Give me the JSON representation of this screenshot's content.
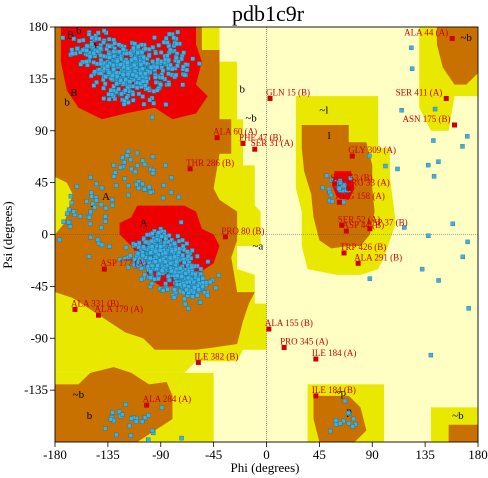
{
  "colors": {
    "core": "#ee0000",
    "allowed": "#c87000",
    "generous": "#e8e800",
    "outside": "#ffffc4",
    "point": "#40b0e0",
    "outlier": "#d00000"
  },
  "chart_data": {
    "type": "scatter",
    "title": "pdb1c9r",
    "xlabel": "Phi (degrees)",
    "ylabel": "Psi (degrees)",
    "xlim": [
      -180,
      180
    ],
    "ylim": [
      -180,
      180
    ],
    "xticks": [
      "-180",
      "-135",
      "-90",
      "-45",
      "0",
      "45",
      "90",
      "135",
      "180"
    ],
    "yticks": [
      "180",
      "135",
      "90",
      "45",
      "0",
      "-45",
      "-90",
      "-135"
    ],
    "grid": false,
    "region_labels": [
      {
        "text": "B",
        "x": -170,
        "y": 170
      },
      {
        "text": "b",
        "x": -162,
        "y": 174
      },
      {
        "text": "b",
        "x": -147,
        "y": 160
      },
      {
        "text": "B",
        "x": -167,
        "y": 120
      },
      {
        "text": "b",
        "x": -172,
        "y": 112
      },
      {
        "text": "A",
        "x": -140,
        "y": 30
      },
      {
        "text": "a",
        "x": -150,
        "y": 24
      },
      {
        "text": "A",
        "x": -108,
        "y": 7
      },
      {
        "text": "b",
        "x": -23,
        "y": 123
      },
      {
        "text": "~b",
        "x": -18,
        "y": 98
      },
      {
        "text": "~l",
        "x": 45,
        "y": 105
      },
      {
        "text": "l",
        "x": 52,
        "y": 83
      },
      {
        "text": "L",
        "x": 63,
        "y": 37
      },
      {
        "text": "~a",
        "x": -12,
        "y": -13
      },
      {
        "text": "~b",
        "x": -165,
        "y": -142
      },
      {
        "text": "b",
        "x": -153,
        "y": -160
      },
      {
        "text": "~p",
        "x": 58,
        "y": -140
      },
      {
        "text": "p",
        "x": 68,
        "y": -156
      },
      {
        "text": "~b",
        "x": 158,
        "y": -160
      },
      {
        "text": "~b",
        "x": 165,
        "y": 168
      }
    ],
    "outliers": [
      {
        "label": "ALA 44 (A)",
        "phi": 158,
        "psi": 170
      },
      {
        "label": "SER 411 (A)",
        "phi": 153,
        "psi": 118
      },
      {
        "label": "ASN 175 (B)",
        "phi": 160,
        "psi": 95
      },
      {
        "label": "GLN 15 (B)",
        "phi": 3,
        "psi": 118
      },
      {
        "label": "ALA 60 (A)",
        "phi": -42,
        "psi": 84
      },
      {
        "label": "PHE 47 (B)",
        "phi": -20,
        "psi": 79
      },
      {
        "label": "SER 31 (A)",
        "phi": -10,
        "psi": 74
      },
      {
        "label": "THR 286 (B)",
        "phi": -65,
        "psi": 57
      },
      {
        "label": "GLY 309 (A)",
        "phi": 73,
        "psi": 68
      },
      {
        "label": "SER 53 (B)",
        "phi": 58,
        "psi": 44
      },
      {
        "label": "ARG 33 (A)",
        "phi": 70,
        "psi": 40
      },
      {
        "label": "ARG 158 (A)",
        "phi": 62,
        "psi": 28
      },
      {
        "label": "SER 52 (A)",
        "phi": 64,
        "psi": 8
      },
      {
        "label": "ASP 44 (B)",
        "phi": 68,
        "psi": 3
      },
      {
        "label": "ASP 37 (B)",
        "phi": 88,
        "psi": 5
      },
      {
        "label": "PRO 80 (B)",
        "phi": -35,
        "psi": -2
      },
      {
        "label": "TRP 426 (B)",
        "phi": 66,
        "psi": -16
      },
      {
        "label": "ALA 291 (B)",
        "phi": 78,
        "psi": -25
      },
      {
        "label": "ASP 177 (A)",
        "phi": -138,
        "psi": -30
      },
      {
        "label": "ALA 331 (B)",
        "phi": -163,
        "psi": -65
      },
      {
        "label": "ALA 179 (A)",
        "phi": -143,
        "psi": -70
      },
      {
        "label": "ALA 155 (B)",
        "phi": 2,
        "psi": -82
      },
      {
        "label": "PRO 345 (A)",
        "phi": 15,
        "psi": -98
      },
      {
        "label": "ILE 184 (A)",
        "phi": 42,
        "psi": -108
      },
      {
        "label": "ILE 382 (B)",
        "phi": -58,
        "psi": -111
      },
      {
        "label": "ILE 184 (B)",
        "phi": 42,
        "psi": -140
      },
      {
        "label": "ALA 284 (A)",
        "phi": -102,
        "psi": -148
      }
    ]
  }
}
